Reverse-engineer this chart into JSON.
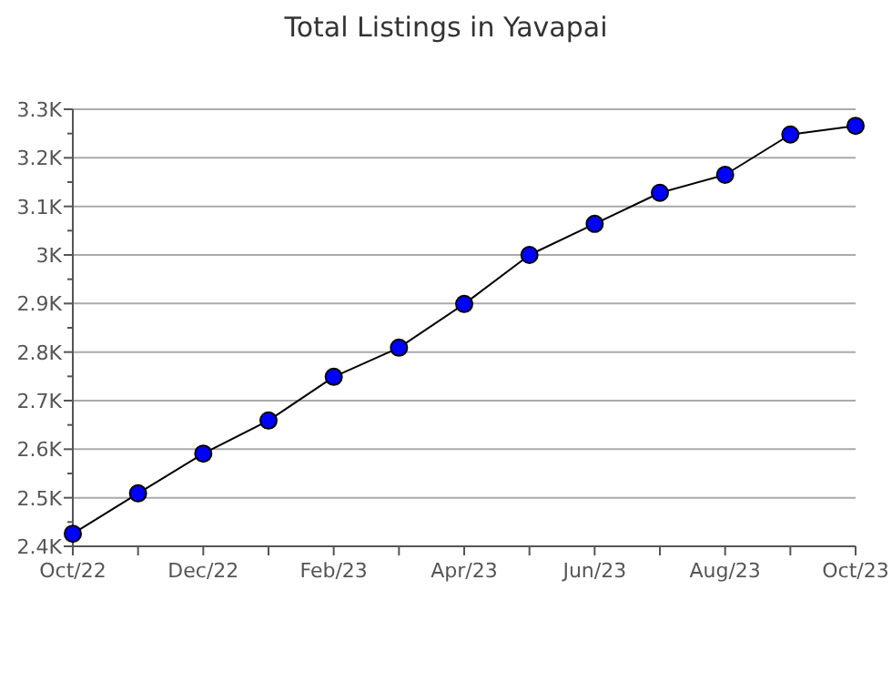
{
  "chart_data": {
    "type": "line",
    "title": "Total Listings in Yavapai",
    "categories": [
      "Oct/22",
      null,
      "Dec/22",
      null,
      "Feb/23",
      null,
      "Apr/23",
      null,
      "Jun/23",
      null,
      "Aug/23",
      null,
      "Oct/23"
    ],
    "series": [
      {
        "color": "#0000ff",
        "values": [
          2426,
          2509,
          2591,
          2659,
          2749,
          2809,
          2899,
          3000,
          3064,
          3128,
          3165,
          3248,
          3266
        ]
      }
    ],
    "ylim": [
      2400,
      3300
    ],
    "yticks": [
      {
        "value": 2400,
        "label": "2.4K"
      },
      {
        "value": 2450,
        "label": null
      },
      {
        "value": 2500,
        "label": "2.5K"
      },
      {
        "value": 2550,
        "label": null
      },
      {
        "value": 2600,
        "label": "2.6K"
      },
      {
        "value": 2650,
        "label": null
      },
      {
        "value": 2700,
        "label": "2.7K"
      },
      {
        "value": 2750,
        "label": null
      },
      {
        "value": 2800,
        "label": "2.8K"
      },
      {
        "value": 2850,
        "label": null
      },
      {
        "value": 2900,
        "label": "2.9K"
      },
      {
        "value": 2950,
        "label": null
      },
      {
        "value": 3000,
        "label": "3K"
      },
      {
        "value": 3050,
        "label": null
      },
      {
        "value": 3100,
        "label": "3.1K"
      },
      {
        "value": 3150,
        "label": null
      },
      {
        "value": 3200,
        "label": "3.2K"
      },
      {
        "value": 3250,
        "label": null
      },
      {
        "value": 3300,
        "label": "3.3K"
      }
    ],
    "grid": "y",
    "marker": "circle",
    "line_style": "solid"
  }
}
